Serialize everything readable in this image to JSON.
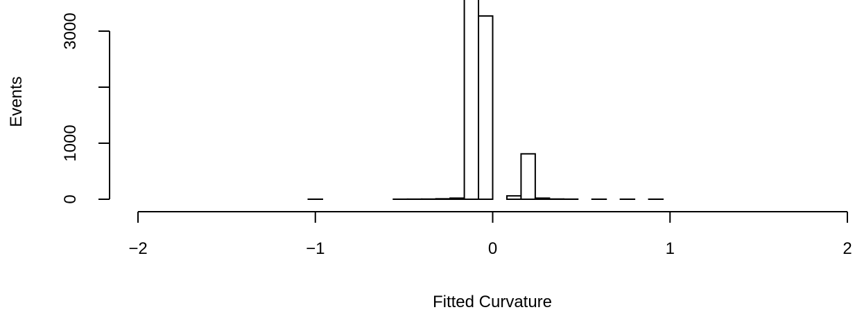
{
  "chart_data": {
    "type": "bar",
    "title": "",
    "xlabel": "Fitted Curvature",
    "ylabel": "Events",
    "xlim": [
      -2,
      2
    ],
    "ylim": [
      0,
      3300
    ],
    "x_ticks": [
      -2,
      -1,
      0,
      1,
      2
    ],
    "x_tick_labels": [
      "−2",
      "−1",
      "0",
      "1",
      "2"
    ],
    "y_ticks": [
      0,
      1000,
      2000,
      3000
    ],
    "y_tick_labels": [
      "0",
      "1000",
      "",
      "3000"
    ],
    "bin_width": 0.08,
    "bins": [
      {
        "x0": -2.0,
        "x1": -1.92,
        "count": 0
      },
      {
        "x0": -1.92,
        "x1": -1.84,
        "count": 0
      },
      {
        "x0": -1.84,
        "x1": -1.76,
        "count": 0
      },
      {
        "x0": -1.76,
        "x1": -1.68,
        "count": 0
      },
      {
        "x0": -1.68,
        "x1": -1.6,
        "count": 0
      },
      {
        "x0": -1.6,
        "x1": -1.52,
        "count": 0
      },
      {
        "x0": -1.52,
        "x1": -1.44,
        "count": 0
      },
      {
        "x0": -1.44,
        "x1": -1.36,
        "count": 0
      },
      {
        "x0": -1.36,
        "x1": -1.28,
        "count": 0
      },
      {
        "x0": -1.28,
        "x1": -1.2,
        "count": 0
      },
      {
        "x0": -1.2,
        "x1": -1.12,
        "count": 0
      },
      {
        "x0": -1.12,
        "x1": -1.04,
        "count": 0
      },
      {
        "x0": -1.04,
        "x1": -0.96,
        "count": 1
      },
      {
        "x0": -0.96,
        "x1": -0.88,
        "count": 0
      },
      {
        "x0": -0.88,
        "x1": -0.8,
        "count": 0
      },
      {
        "x0": -0.8,
        "x1": -0.72,
        "count": 0
      },
      {
        "x0": -0.72,
        "x1": -0.64,
        "count": 0
      },
      {
        "x0": -0.64,
        "x1": -0.56,
        "count": 0
      },
      {
        "x0": -0.56,
        "x1": -0.48,
        "count": 1
      },
      {
        "x0": -0.48,
        "x1": -0.4,
        "count": 2
      },
      {
        "x0": -0.4,
        "x1": -0.32,
        "count": 3
      },
      {
        "x0": -0.32,
        "x1": -0.24,
        "count": 8
      },
      {
        "x0": -0.24,
        "x1": -0.16,
        "count": 20
      },
      {
        "x0": -0.16,
        "x1": -0.08,
        "count": 3600
      },
      {
        "x0": -0.08,
        "x1": 0.0,
        "count": 3270
      },
      {
        "x0": 0.0,
        "x1": 0.08,
        "count": 0
      },
      {
        "x0": 0.08,
        "x1": 0.16,
        "count": 60
      },
      {
        "x0": 0.16,
        "x1": 0.24,
        "count": 810
      },
      {
        "x0": 0.24,
        "x1": 0.32,
        "count": 20
      },
      {
        "x0": 0.32,
        "x1": 0.4,
        "count": 4
      },
      {
        "x0": 0.4,
        "x1": 0.48,
        "count": 2
      },
      {
        "x0": 0.48,
        "x1": 0.56,
        "count": 0
      },
      {
        "x0": 0.56,
        "x1": 0.64,
        "count": 1
      },
      {
        "x0": 0.64,
        "x1": 0.72,
        "count": 0
      },
      {
        "x0": 0.72,
        "x1": 0.8,
        "count": 1
      },
      {
        "x0": 0.8,
        "x1": 0.88,
        "count": 0
      },
      {
        "x0": 0.88,
        "x1": 0.96,
        "count": 1
      },
      {
        "x0": 0.96,
        "x1": 1.04,
        "count": 0
      },
      {
        "x0": 1.04,
        "x1": 1.12,
        "count": 0
      },
      {
        "x0": 1.12,
        "x1": 1.2,
        "count": 0
      },
      {
        "x0": 1.2,
        "x1": 1.28,
        "count": 0
      },
      {
        "x0": 1.28,
        "x1": 1.36,
        "count": 0
      },
      {
        "x0": 1.36,
        "x1": 1.44,
        "count": 0
      },
      {
        "x0": 1.44,
        "x1": 1.52,
        "count": 0
      },
      {
        "x0": 1.52,
        "x1": 1.6,
        "count": 0
      },
      {
        "x0": 1.6,
        "x1": 1.68,
        "count": 0
      },
      {
        "x0": 1.68,
        "x1": 1.76,
        "count": 0
      },
      {
        "x0": 1.76,
        "x1": 1.84,
        "count": 0
      },
      {
        "x0": 1.84,
        "x1": 1.92,
        "count": 0
      },
      {
        "x0": 1.92,
        "x1": 2.0,
        "count": 0
      }
    ],
    "grid": false,
    "legend": "none",
    "colors": {
      "bar_fill": "#ffffff",
      "bar_stroke": "#000000"
    }
  }
}
